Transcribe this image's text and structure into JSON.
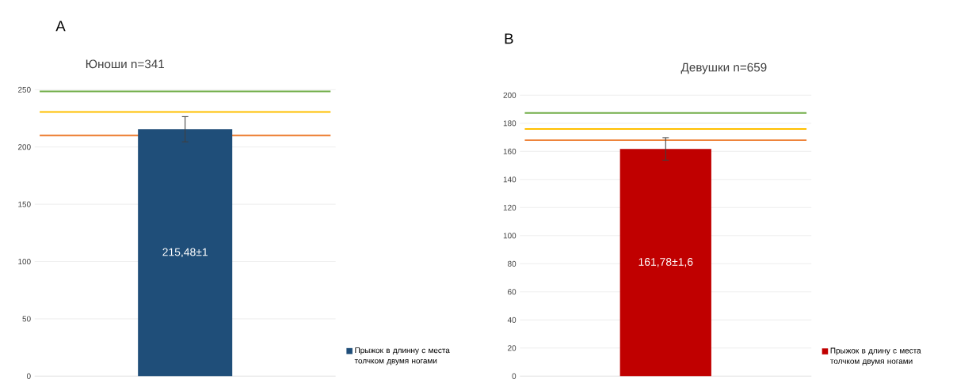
{
  "chart_data": [
    {
      "type": "bar",
      "title": "Юноши n=341",
      "annotations": [
        "A"
      ],
      "categories": [
        null
      ],
      "series": [
        {
          "name": "Прыжок в длинну с места толчком двумя ногами",
          "color": "#1f4e79",
          "values": [
            215.48
          ],
          "errors": [
            11
          ],
          "value_labels": [
            "215,48±1"
          ]
        }
      ],
      "ylim": [
        0,
        250
      ],
      "yticks": [
        0,
        50,
        100,
        150,
        200,
        250
      ],
      "grid": "y",
      "legend": "right",
      "ref_lines": [
        {
          "axis": "y",
          "value": 248.5,
          "color": "#70ad47"
        },
        {
          "axis": "y",
          "value": 230.5,
          "color": "#ffc000"
        },
        {
          "axis": "y",
          "value": 210,
          "color": "#ed7d31"
        }
      ]
    },
    {
      "type": "bar",
      "title": "Девушки n=659",
      "annotations": [
        "B"
      ],
      "categories": [
        null
      ],
      "series": [
        {
          "name": "Прыжок в длину с места толчком двумя ногами",
          "color": "#c00000",
          "values": [
            161.78
          ],
          "errors": [
            8
          ],
          "value_labels": [
            "161,78±1,6"
          ]
        }
      ],
      "ylim": [
        0,
        200
      ],
      "yticks": [
        0,
        20,
        40,
        60,
        80,
        100,
        120,
        140,
        160,
        180,
        200
      ],
      "grid": "y",
      "legend": "right",
      "ref_lines": [
        {
          "axis": "y",
          "value": 187.4,
          "color": "#70ad47"
        },
        {
          "axis": "y",
          "value": 176,
          "color": "#ffc000"
        },
        {
          "axis": "y",
          "value": 168,
          "color": "#ed7d31"
        }
      ]
    }
  ]
}
